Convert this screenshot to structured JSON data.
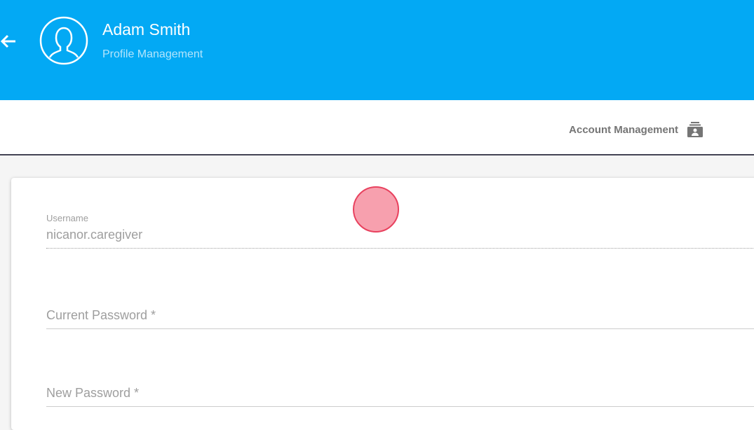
{
  "header": {
    "name": "Adam Smith",
    "subtitle": "Profile Management",
    "back_icon": "arrow-left-icon",
    "avatar_icon": "user-silhouette-icon",
    "color": "#03a9f4"
  },
  "toolbar": {
    "account_management": "Account Management",
    "account_icon": "account-box-icon"
  },
  "form": {
    "username_label": "Username",
    "username_value": "nicanor.caregiver",
    "current_password_label": "Current Password *",
    "new_password_label": "New Password *"
  }
}
